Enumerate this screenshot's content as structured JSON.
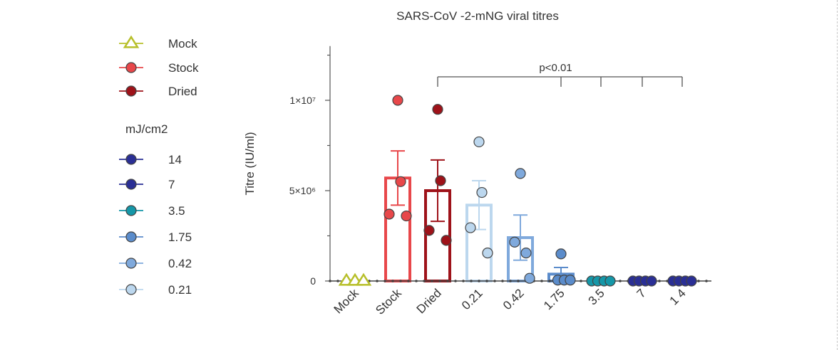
{
  "chart_data": {
    "type": "bar",
    "title": "SARS-CoV -2-mNG viral titres",
    "ylabel": "Titre (IU/ml)",
    "xlabel": "",
    "ylim": [
      0,
      13000000
    ],
    "y_ticks": [
      {
        "value": 0,
        "label": "0"
      },
      {
        "value": 5000000,
        "label": "5×10⁶"
      },
      {
        "value": 10000000,
        "label": "1×10⁷"
      }
    ],
    "categories": [
      "Mock",
      "Stock",
      "Dried",
      "0.21",
      "0.42",
      "1.75",
      "3.5",
      "7",
      "1 4"
    ],
    "bars": [
      {
        "category": "Mock",
        "mean": 0,
        "sem": 0,
        "color": "#b7bf2a"
      },
      {
        "category": "Stock",
        "mean": 5700000,
        "sem": 1500000,
        "color": "#e8474a"
      },
      {
        "category": "Dried",
        "mean": 5000000,
        "sem": 1700000,
        "color": "#9e1219"
      },
      {
        "category": "0.21",
        "mean": 4200000,
        "sem": 1350000,
        "color": "#bcd7ee"
      },
      {
        "category": "0.42",
        "mean": 2400000,
        "sem": 1250000,
        "color": "#7fa9dc"
      },
      {
        "category": "1.75",
        "mean": 380000,
        "sem": 370000,
        "color": "#5b8ccb"
      },
      {
        "category": "3.5",
        "mean": 0,
        "sem": 0,
        "color": "#1597a8"
      },
      {
        "category": "7",
        "mean": 0,
        "sem": 0,
        "color": "#2a2f95"
      },
      {
        "category": "1 4",
        "mean": 0,
        "sem": 0,
        "color": "#2a2f95"
      }
    ],
    "points": [
      {
        "category": "Mock",
        "values": [
          0,
          0,
          0
        ],
        "marker": "triangle"
      },
      {
        "category": "Stock",
        "values": [
          10000000,
          5500000,
          3700000,
          3600000
        ],
        "marker": "circle"
      },
      {
        "category": "Dried",
        "values": [
          9500000,
          5550000,
          2800000,
          2250000
        ],
        "marker": "circle"
      },
      {
        "category": "0.21",
        "values": [
          7700000,
          4900000,
          2950000,
          1550000
        ],
        "marker": "circle"
      },
      {
        "category": "0.42",
        "values": [
          5950000,
          2150000,
          1550000,
          150000
        ],
        "marker": "circle"
      },
      {
        "category": "1.75",
        "values": [
          1500000,
          50000,
          50000,
          50000
        ],
        "marker": "circle"
      },
      {
        "category": "3.5",
        "values": [
          0,
          0,
          0,
          0
        ],
        "marker": "circle"
      },
      {
        "category": "7",
        "values": [
          0,
          0,
          0,
          0
        ],
        "marker": "circle"
      },
      {
        "category": "1 4",
        "values": [
          0,
          0,
          0,
          0
        ],
        "marker": "circle"
      }
    ],
    "significance": {
      "label": "p<0.01",
      "from": "Dried",
      "to": [
        "1.75",
        "3.5",
        "7",
        "1 4"
      ]
    },
    "legend": {
      "placement": "left",
      "entries": [
        {
          "name": "Mock",
          "marker": "triangle",
          "color": "#b7bf2a"
        },
        {
          "name": "Stock",
          "marker": "circle",
          "color": "#e8474a"
        },
        {
          "name": "Dried",
          "marker": "circle",
          "color": "#9e1219"
        }
      ],
      "subtitle": "mJ/cm2",
      "dose_entries": [
        {
          "name": "14",
          "marker": "circle",
          "color": "#2a2f95"
        },
        {
          "name": "7",
          "marker": "circle",
          "color": "#2a2f95"
        },
        {
          "name": "3.5",
          "marker": "circle",
          "color": "#1597a8"
        },
        {
          "name": "1.75",
          "marker": "circle",
          "color": "#5b8ccb"
        },
        {
          "name": "0.42",
          "marker": "circle",
          "color": "#7fa9dc"
        },
        {
          "name": "0.21",
          "marker": "circle",
          "color": "#bcd7ee"
        }
      ]
    },
    "grid": false
  }
}
